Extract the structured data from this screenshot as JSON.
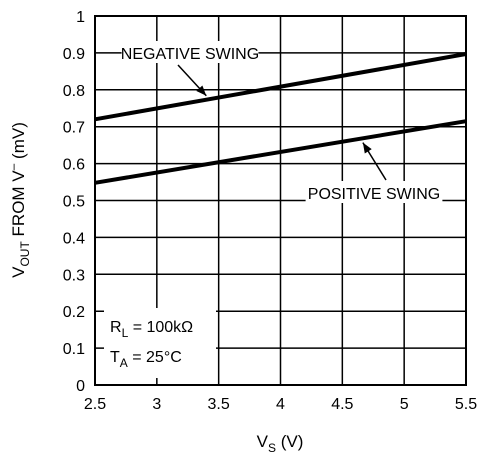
{
  "chart_data": {
    "type": "line",
    "x": [
      2.5,
      5.5
    ],
    "series": [
      {
        "name": "NEGATIVE SWING",
        "values": [
          0.72,
          0.897
        ]
      },
      {
        "name": "POSITIVE SWING",
        "values": [
          0.548,
          0.715
        ]
      }
    ],
    "xlim": [
      2.5,
      5.5
    ],
    "ylim": [
      0,
      1
    ],
    "xticks": [
      2.5,
      3,
      3.5,
      4,
      4.5,
      5,
      5.5
    ],
    "yticks": [
      0,
      0.1,
      0.2,
      0.3,
      0.4,
      0.5,
      0.6,
      0.7,
      0.8,
      0.9,
      1
    ],
    "xtick_labels": [
      "2.5",
      "3",
      "3.5",
      "4",
      "4.5",
      "5",
      "5.5"
    ],
    "ytick_labels": [
      "0",
      "0.1",
      "0.2",
      "0.3",
      "0.4",
      "0.5",
      "0.6",
      "0.7",
      "0.8",
      "0.9",
      "1"
    ],
    "xlabel": {
      "main": "V",
      "sub": "S",
      "rest": " (V)"
    },
    "ylabel": {
      "main": "V",
      "sub": "OUT",
      "rest": " FROM V",
      "sup": "–",
      "unit": " (mV)"
    },
    "conditions": [
      {
        "main": "R",
        "sub": "L",
        "rest": " = 100kΩ"
      },
      {
        "main": "T",
        "sub": "A",
        "rest": " = 25°C"
      }
    ],
    "grid": true,
    "line_color": "#000000"
  }
}
